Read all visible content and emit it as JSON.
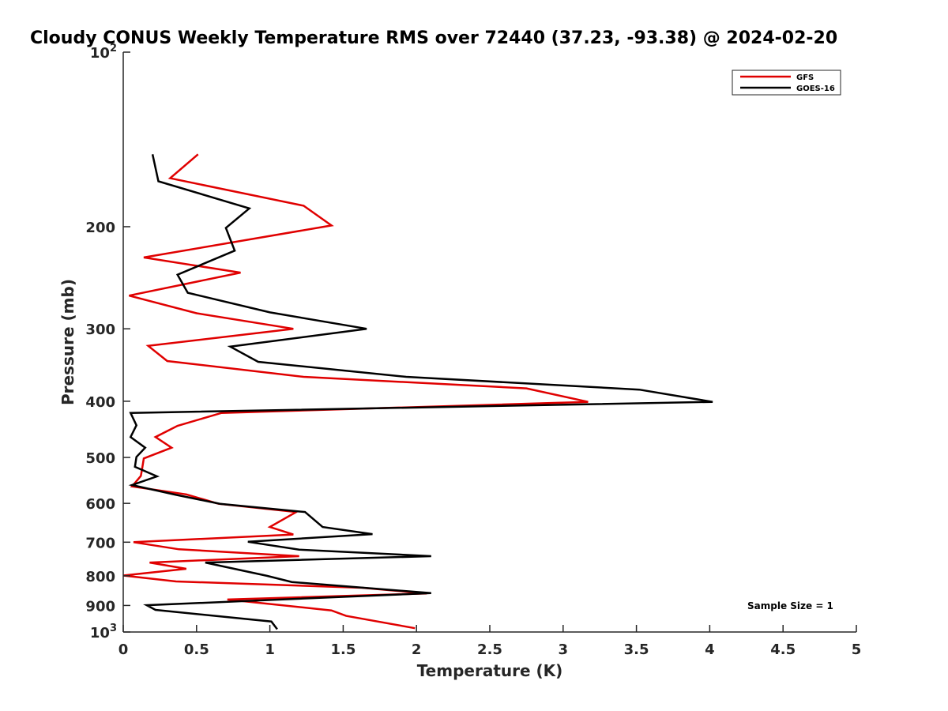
{
  "chart_data": {
    "type": "line",
    "title": "Cloudy CONUS Weekly Temperature RMS over 72440 (37.23, -93.38) @ 2024-02-20",
    "xlabel": "Temperature (K)",
    "ylabel": "Pressure (mb)",
    "xlim": [
      0,
      5
    ],
    "ylim": [
      100,
      1000
    ],
    "y_scale": "log",
    "y_reversed": true,
    "grid": false,
    "legend_position": "top-right",
    "xticks": [
      0,
      0.5,
      1,
      1.5,
      2,
      2.5,
      3,
      3.5,
      4,
      4.5,
      5
    ],
    "xtick_labels": [
      "0",
      "0.5",
      "1",
      "1.5",
      "2",
      "2.5",
      "3",
      "3.5",
      "4",
      "4.5",
      "5"
    ],
    "yticks": [
      {
        "value": 100,
        "label": "10",
        "exponent": "2"
      },
      {
        "value": 200,
        "label": "200"
      },
      {
        "value": 300,
        "label": "300"
      },
      {
        "value": 400,
        "label": "400"
      },
      {
        "value": 500,
        "label": "500"
      },
      {
        "value": 600,
        "label": "600"
      },
      {
        "value": 700,
        "label": "700"
      },
      {
        "value": 800,
        "label": "800"
      },
      {
        "value": 900,
        "label": "900"
      },
      {
        "value": 1000,
        "label": "10",
        "exponent": "3"
      }
    ],
    "annotation": "Sample Size = 1",
    "series": [
      {
        "name": "GFS",
        "color": "#e00000",
        "points": [
          [
            0.51,
            150
          ],
          [
            0.32,
            165
          ],
          [
            1.23,
            184
          ],
          [
            1.42,
            199
          ],
          [
            0.14,
            226
          ],
          [
            0.8,
            240
          ],
          [
            0.04,
            263
          ],
          [
            0.5,
            282
          ],
          [
            1.16,
            300
          ],
          [
            0.17,
            321
          ],
          [
            0.3,
            341
          ],
          [
            1.23,
            363
          ],
          [
            2.75,
            380
          ],
          [
            3.17,
            401
          ],
          [
            0.67,
            419
          ],
          [
            0.37,
            441
          ],
          [
            0.22,
            461
          ],
          [
            0.33,
            481
          ],
          [
            0.14,
            502
          ],
          [
            0.13,
            521
          ],
          [
            0.12,
            538
          ],
          [
            0.06,
            561
          ],
          [
            0.43,
            579
          ],
          [
            0.65,
            601
          ],
          [
            1.18,
            621
          ],
          [
            1.0,
            659
          ],
          [
            1.16,
            679
          ],
          [
            0.07,
            700
          ],
          [
            0.38,
            720
          ],
          [
            1.2,
            740
          ],
          [
            0.18,
            759
          ],
          [
            0.43,
            778
          ],
          [
            0.0,
            799
          ],
          [
            0.36,
            818
          ],
          [
            1.63,
            839
          ],
          [
            2.07,
            858
          ],
          [
            0.71,
            879
          ],
          [
            1.42,
            918
          ],
          [
            1.52,
            938
          ],
          [
            1.99,
            985
          ]
        ]
      },
      {
        "name": "GOES-16",
        "color": "#000000",
        "points": [
          [
            0.2,
            150
          ],
          [
            0.24,
            167
          ],
          [
            0.86,
            186
          ],
          [
            0.7,
            201
          ],
          [
            0.76,
            220
          ],
          [
            0.37,
            242
          ],
          [
            0.44,
            260
          ],
          [
            1.0,
            281
          ],
          [
            1.66,
            300
          ],
          [
            0.73,
            322
          ],
          [
            0.92,
            342
          ],
          [
            1.93,
            363
          ],
          [
            3.52,
            382
          ],
          [
            4.02,
            401
          ],
          [
            0.05,
            419
          ],
          [
            0.09,
            440
          ],
          [
            0.05,
            461
          ],
          [
            0.15,
            481
          ],
          [
            0.09,
            499
          ],
          [
            0.08,
            519
          ],
          [
            0.23,
            539
          ],
          [
            0.06,
            558
          ],
          [
            0.36,
            580
          ],
          [
            0.66,
            601
          ],
          [
            1.24,
            621
          ],
          [
            1.36,
            659
          ],
          [
            1.7,
            678
          ],
          [
            0.85,
            699
          ],
          [
            1.2,
            721
          ],
          [
            2.1,
            740
          ],
          [
            0.56,
            759
          ],
          [
            0.98,
            800
          ],
          [
            1.15,
            820
          ],
          [
            2.1,
            857
          ],
          [
            0.16,
            899
          ],
          [
            0.22,
            916
          ],
          [
            1.01,
            959
          ],
          [
            1.05,
            989
          ]
        ]
      }
    ]
  }
}
